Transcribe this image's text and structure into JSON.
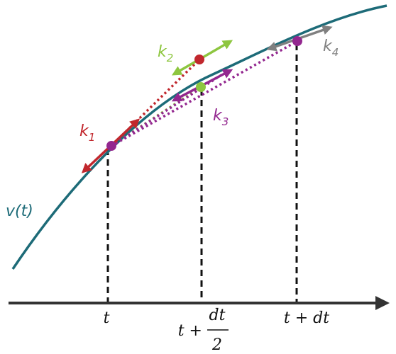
{
  "curve_label": "v(t)",
  "slopes": [
    {
      "base": "k",
      "sub": "1"
    },
    {
      "base": "k",
      "sub": "2"
    },
    {
      "base": "k",
      "sub": "3"
    },
    {
      "base": "k",
      "sub": "4"
    }
  ],
  "axis_labels": {
    "t": "t",
    "half": {
      "lead": "t +",
      "num": "dt",
      "den": "2"
    },
    "full": "t + dt"
  }
}
